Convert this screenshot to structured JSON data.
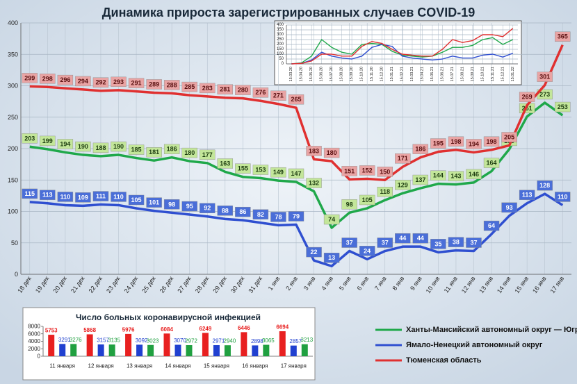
{
  "chart_data": [
    {
      "type": "line",
      "title": "Динамика прироста зарегистрированных случаев COVID-19",
      "categories": [
        "18 дек",
        "19 дек",
        "20 дек",
        "21 дек",
        "22 дек",
        "23 дек",
        "24 дек",
        "25 дек",
        "26 дек",
        "27 дек",
        "28 дек",
        "29 дек",
        "30 дек",
        "31 дек",
        "1 янв",
        "2 янв",
        "3 янв",
        "4 янв",
        "5 янв",
        "6 янв",
        "7 янв",
        "8 янв",
        "9 янв",
        "10 янв",
        "11 янв",
        "12 янв",
        "13 янв",
        "14 янв",
        "15 янв",
        "16 янв",
        "17 янв"
      ],
      "series": [
        {
          "name": "Ханты-Мансийский автономный округ — Югра",
          "color": "#1fa84a",
          "values": [
            203,
            199,
            194,
            190,
            188,
            190,
            185,
            181,
            186,
            180,
            177,
            163,
            155,
            153,
            149,
            147,
            132,
            74,
            98,
            105,
            118,
            129,
            137,
            144,
            143,
            146,
            164,
            199,
            251,
            273,
            253
          ]
        },
        {
          "name": "Ямало-Ненецкий автономный округ",
          "color": "#2f4fd0",
          "values": [
            115,
            113,
            110,
            109,
            111,
            110,
            105,
            101,
            98,
            95,
            92,
            88,
            86,
            82,
            78,
            79,
            22,
            13,
            37,
            24,
            37,
            44,
            44,
            35,
            38,
            37,
            64,
            93,
            113,
            128,
            110
          ]
        },
        {
          "name": "Тюменская область",
          "color": "#e03030",
          "values": [
            299,
            298,
            296,
            294,
            292,
            293,
            291,
            289,
            288,
            285,
            283,
            281,
            280,
            276,
            271,
            265,
            183,
            180,
            151,
            152,
            150,
            171,
            186,
            195,
            198,
            194,
            198,
            205,
            269,
            301,
            365
          ]
        }
      ],
      "ylim": [
        0,
        400
      ],
      "yticks": [
        0,
        50,
        100,
        150,
        200,
        250,
        300,
        350,
        400
      ],
      "grid": true,
      "legend": "bottom-right"
    },
    {
      "type": "line",
      "categories": [
        "15.03.20",
        "15.04.20",
        "15.05.20",
        "15.06.20",
        "15.07.20",
        "15.08.20",
        "15.09.20",
        "15.10.20",
        "15.11.20",
        "15.12.20",
        "15.01.21",
        "15.02.21",
        "15.03.21",
        "15.04.21",
        "15.05.21",
        "15.06.21",
        "15.07.21",
        "15.08.21",
        "15.09.21",
        "15.10.21",
        "15.11.21",
        "15.12.21",
        "15.01.22"
      ],
      "series": [
        {
          "color": "#1fa84a",
          "values": [
            0,
            10,
            80,
            250,
            170,
            120,
            100,
            200,
            210,
            200,
            130,
            90,
            80,
            70,
            80,
            120,
            170,
            170,
            190,
            250,
            270,
            200,
            250
          ]
        },
        {
          "color": "#2f4fd0",
          "values": [
            0,
            5,
            40,
            120,
            80,
            60,
            50,
            80,
            170,
            200,
            180,
            80,
            60,
            50,
            40,
            50,
            80,
            60,
            60,
            90,
            100,
            70,
            110
          ]
        },
        {
          "color": "#e03030",
          "values": [
            0,
            5,
            30,
            100,
            100,
            80,
            80,
            180,
            230,
            210,
            150,
            100,
            90,
            80,
            80,
            150,
            250,
            220,
            240,
            300,
            300,
            280,
            365
          ]
        }
      ],
      "ylim": [
        0,
        400
      ],
      "yticks": [
        0,
        50,
        100,
        150,
        200,
        250,
        300,
        350,
        400
      ],
      "grid": true
    },
    {
      "type": "bar",
      "title": "Число больных коронавирусной  инфекцией",
      "categories": [
        "11 января",
        "12 января",
        "13 января",
        "14 января",
        "15 января",
        "16 января",
        "17 января"
      ],
      "series": [
        {
          "color": "#e82020",
          "values": [
            5753,
            5868,
            5976,
            6084,
            6249,
            6446,
            6694
          ]
        },
        {
          "color": "#2040d0",
          "values": [
            3291,
            3157,
            3092,
            3070,
            2971,
            2898,
            2857
          ]
        },
        {
          "color": "#20a040",
          "values": [
            3276,
            3135,
            3023,
            2972,
            2940,
            3065,
            3213
          ]
        }
      ],
      "ylim": [
        0,
        8000
      ],
      "yticks": [
        0,
        2000,
        4000,
        6000,
        8000
      ]
    }
  ]
}
